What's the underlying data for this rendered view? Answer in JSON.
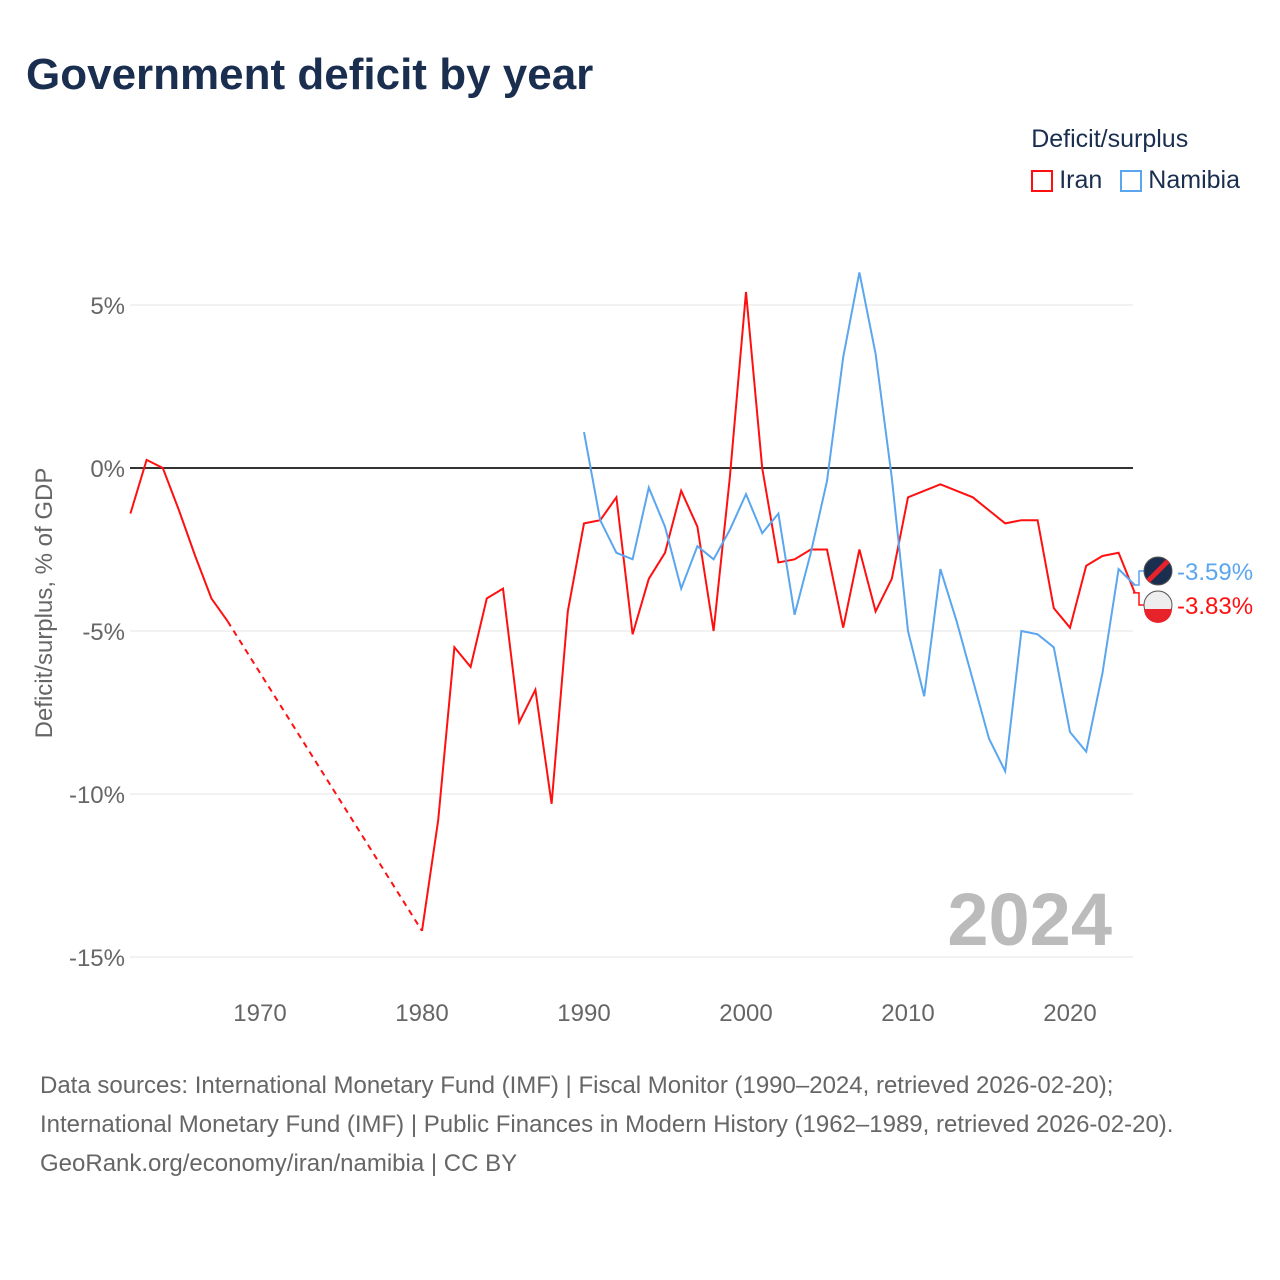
{
  "title": "Government deficit by year",
  "legend": {
    "title": "Deficit/surplus",
    "items": [
      {
        "label": "Iran",
        "color": "#ff1010"
      },
      {
        "label": "Namibia",
        "color": "#5aa6ef"
      }
    ]
  },
  "footer": {
    "sources": "Data sources: International Monetary Fund (IMF) | Fiscal Monitor (1990–2024, retrieved 2026-02-20); International Monetary Fund (IMF) | Public Finances in Modern History (1962–1989, retrieved 2026-02-20).",
    "credit": "GeoRank.org/economy/iran/namibia | CC BY"
  },
  "chart_data": {
    "type": "line",
    "title": "Government deficit by year",
    "ylabel": "Deficit/surplus, % of GDP",
    "xlabel": "",
    "xlim": [
      1962,
      2024
    ],
    "ylim": [
      -15.5,
      6.5
    ],
    "xticks": [
      1970,
      1980,
      1990,
      2000,
      2010,
      2020
    ],
    "xtick_labels": [
      "1970",
      "1980",
      "1990",
      "2000",
      "2010",
      "2020"
    ],
    "yticks": [
      5,
      0,
      -5,
      -10,
      -15
    ],
    "ytick_labels": [
      "5%",
      "0%",
      "-5%",
      "-10%",
      "-15%"
    ],
    "year_watermark": "2024",
    "series": [
      {
        "name": "Iran",
        "color": "#ff1010",
        "end_label": "-3.83%",
        "x": [
          1962,
          1963,
          1964,
          1965,
          1966,
          1967,
          1968,
          1980,
          1981,
          1982,
          1983,
          1984,
          1985,
          1986,
          1987,
          1988,
          1989,
          1990,
          1991,
          1992,
          1993,
          1994,
          1995,
          1996,
          1997,
          1998,
          1999,
          2000,
          2001,
          2002,
          2003,
          2004,
          2005,
          2006,
          2007,
          2008,
          2009,
          2010,
          2011,
          2012,
          2013,
          2014,
          2015,
          2016,
          2017,
          2018,
          2019,
          2020,
          2021,
          2022,
          2023,
          2024
        ],
        "y": [
          -1.4,
          0.25,
          0,
          -1.3,
          -2.7,
          -4.0,
          -4.7,
          -14.2,
          -10.8,
          -5.5,
          -6.1,
          -4.0,
          -3.7,
          -7.8,
          -6.8,
          -10.3,
          -4.4,
          -1.7,
          -1.6,
          -0.9,
          -5.1,
          -3.4,
          -2.6,
          -0.7,
          -1.8,
          -5.0,
          -0.3,
          5.4,
          0,
          -2.9,
          -2.8,
          -2.5,
          -2.5,
          -4.9,
          -2.5,
          -4.4,
          -3.4,
          -0.9,
          -0.7,
          -0.5,
          -0.7,
          -0.9,
          -1.3,
          -1.7,
          -1.6,
          -1.6,
          -4.3,
          -4.9,
          -3.0,
          -2.7,
          -2.6,
          -3.83
        ],
        "gap_after": 1968
      },
      {
        "name": "Namibia",
        "color": "#5aa6ef",
        "end_label": "-3.59%",
        "x": [
          1990,
          1991,
          1992,
          1993,
          1994,
          1995,
          1996,
          1997,
          1998,
          1999,
          2000,
          2001,
          2002,
          2003,
          2004,
          2005,
          2006,
          2007,
          2008,
          2009,
          2010,
          2011,
          2012,
          2013,
          2014,
          2015,
          2016,
          2017,
          2018,
          2019,
          2020,
          2021,
          2022,
          2023,
          2024
        ],
        "y": [
          1.1,
          -1.6,
          -2.6,
          -2.8,
          -0.6,
          -1.8,
          -3.7,
          -2.4,
          -2.8,
          -1.9,
          -0.8,
          -2.0,
          -1.4,
          -4.5,
          -2.6,
          -0.4,
          3.4,
          6.0,
          3.5,
          -0.3,
          -5.0,
          -7.0,
          -3.1,
          -4.7,
          -6.5,
          -8.3,
          -9.3,
          -5.0,
          -5.1,
          -5.5,
          -8.1,
          -8.7,
          -6.3,
          -3.1,
          -3.59
        ]
      }
    ]
  }
}
